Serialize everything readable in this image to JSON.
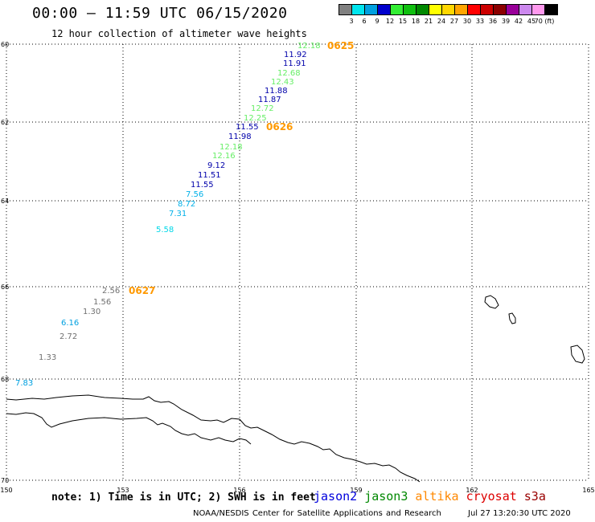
{
  "header": {
    "title": "00:00 – 11:59 UTC 06/15/2020",
    "subtitle": "12 hour collection of altimeter wave heights"
  },
  "legend": {
    "colors": [
      "#808080",
      "#00e5ee",
      "#00a0e0",
      "#0000cd",
      "#33ee33",
      "#10c010",
      "#008800",
      "#ffff00",
      "#ffd700",
      "#ffa500",
      "#ff0000",
      "#cc0000",
      "#8b0000",
      "#990099",
      "#cc88ee",
      "#ff99ee",
      "#000000"
    ],
    "labels": [
      "3",
      "6",
      "9",
      "12",
      "15",
      "18",
      "21",
      "24",
      "27",
      "30",
      "33",
      "36",
      "39",
      "42",
      "45",
      "70 (ft)"
    ]
  },
  "axes": {
    "lat_labels": [
      "60",
      "62",
      "64",
      "66",
      "68",
      "70"
    ],
    "lon_labels": [
      "150",
      "153",
      "156",
      "159",
      "162",
      "165"
    ]
  },
  "time_tags": [
    "0625",
    "0626",
    "0627"
  ],
  "observations": [
    {
      "v": "12.18",
      "c": "#66ee66"
    },
    {
      "v": "11.92",
      "c": "#0000aa"
    },
    {
      "v": "11.91",
      "c": "#0000aa"
    },
    {
      "v": "12.68",
      "c": "#66ee66"
    },
    {
      "v": "12.43",
      "c": "#66ee66"
    },
    {
      "v": "11.88",
      "c": "#0000aa"
    },
    {
      "v": "11.87",
      "c": "#0000aa"
    },
    {
      "v": "12.72",
      "c": "#66ee66"
    },
    {
      "v": "12.25",
      "c": "#66ee66"
    },
    {
      "v": "11.55",
      "c": "#0000aa"
    },
    {
      "v": "11.98",
      "c": "#0000aa"
    },
    {
      "v": "12.18",
      "c": "#66ee66"
    },
    {
      "v": "12.16",
      "c": "#66ee66"
    },
    {
      "v": "9.12",
      "c": "#0000aa"
    },
    {
      "v": "11.51",
      "c": "#0000aa"
    },
    {
      "v": "11.55",
      "c": "#0000aa"
    },
    {
      "v": "7.56",
      "c": "#00b0e8"
    },
    {
      "v": "8.72",
      "c": "#00b0e8"
    },
    {
      "v": "7.31",
      "c": "#00b0e8"
    },
    {
      "v": "5.58",
      "c": "#00d8e8"
    },
    {
      "v": "2.56",
      "c": "#707070"
    },
    {
      "v": "1.56",
      "c": "#707070"
    },
    {
      "v": "1.30",
      "c": "#707070"
    },
    {
      "v": "6.16",
      "c": "#00a0e0"
    },
    {
      "v": "2.72",
      "c": "#707070"
    },
    {
      "v": "1.33",
      "c": "#707070"
    },
    {
      "v": "7.83",
      "c": "#00a0e0"
    }
  ],
  "footer": {
    "note": "note: 1) Time is in UTC; 2) SWH is in feet",
    "satellites": [
      {
        "name": "jason2",
        "color": "#0000dd"
      },
      {
        "name": "jason3",
        "color": "#008800"
      },
      {
        "name": "altika",
        "color": "#ff8800"
      },
      {
        "name": "cryosat",
        "color": "#dd0000"
      },
      {
        "name": "s3a",
        "color": "#990000"
      }
    ],
    "credit": "NOAA/NESDIS Center for Satellite Applications and Research",
    "timestamp": "Jul 27 13:20:30 UTC 2020"
  }
}
